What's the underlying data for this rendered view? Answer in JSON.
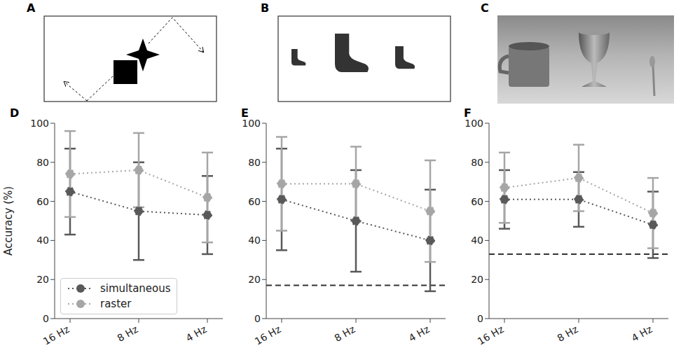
{
  "panels": [
    {
      "letter": "A"
    },
    {
      "letter": "B"
    },
    {
      "letter": "C"
    }
  ],
  "chart_data": [
    {
      "letter": "D",
      "type": "line",
      "categories": [
        "16 Hz",
        "8 Hz",
        "4 Hz"
      ],
      "y_label": "Accuracy (%)",
      "ylim": [
        0,
        100
      ],
      "yticks": [
        0,
        20,
        40,
        60,
        80,
        100
      ],
      "marker": "circle",
      "line_style": "dotted",
      "legend": "lower left",
      "series": [
        {
          "name": "simultaneous",
          "color": "#595959",
          "values": [
            65,
            55,
            53
          ],
          "errors": [
            22,
            25,
            20
          ]
        },
        {
          "name": "raster",
          "color": "#a6a6a6",
          "values": [
            74,
            76,
            62
          ],
          "errors": [
            22,
            19,
            23
          ]
        }
      ]
    },
    {
      "letter": "E",
      "type": "line",
      "categories": [
        "16 Hz",
        "8 Hz",
        "4 Hz"
      ],
      "ylim": [
        0,
        100
      ],
      "yticks": [
        0,
        20,
        40,
        60,
        80,
        100
      ],
      "marker": "circle",
      "line_style": "dotted",
      "chance_level": 17,
      "series": [
        {
          "name": "simultaneous",
          "color": "#595959",
          "values": [
            61,
            50,
            40
          ],
          "errors": [
            26,
            26,
            26
          ]
        },
        {
          "name": "raster",
          "color": "#a6a6a6",
          "values": [
            69,
            69,
            55
          ],
          "errors": [
            24,
            19,
            26
          ]
        }
      ]
    },
    {
      "letter": "F",
      "type": "line",
      "categories": [
        "16 Hz",
        "8 Hz",
        "4 Hz"
      ],
      "ylim": [
        0,
        100
      ],
      "yticks": [
        0,
        20,
        40,
        60,
        80,
        100
      ],
      "marker": "circle",
      "line_style": "dotted",
      "chance_level": 33,
      "series": [
        {
          "name": "simultaneous",
          "color": "#595959",
          "values": [
            61,
            61,
            48
          ],
          "errors": [
            15,
            14,
            17
          ]
        },
        {
          "name": "raster",
          "color": "#a6a6a6",
          "values": [
            67,
            72,
            54
          ],
          "errors": [
            18,
            17,
            18
          ]
        }
      ]
    }
  ]
}
